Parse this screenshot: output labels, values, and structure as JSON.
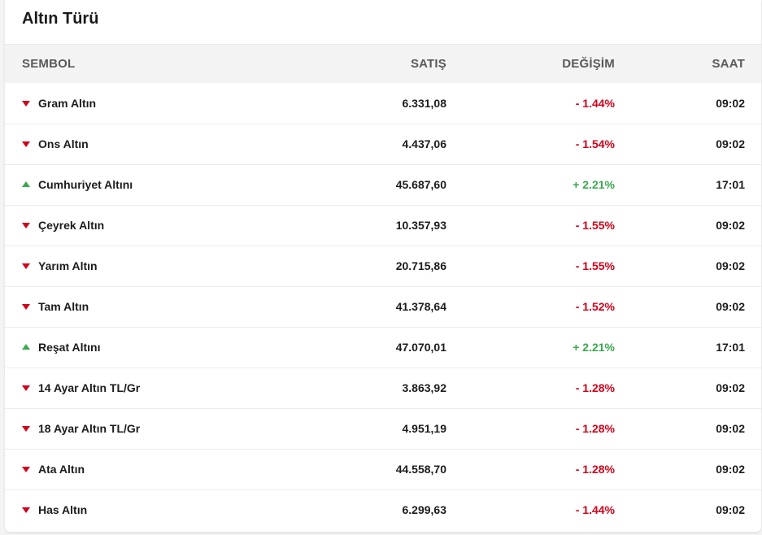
{
  "title": "Altın Türü",
  "columns": {
    "symbol": "SEMBOL",
    "sale": "SATIŞ",
    "change": "DEĞİŞİM",
    "time": "SAAT"
  },
  "colors": {
    "negative": "#d0021b",
    "positive": "#3aa84f"
  },
  "rows": [
    {
      "name": "Gram Altın",
      "sale": "6.331,08",
      "change": "- 1.44%",
      "time": "09:02",
      "direction": "down"
    },
    {
      "name": "Ons Altın",
      "sale": "4.437,06",
      "change": "- 1.54%",
      "time": "09:02",
      "direction": "down"
    },
    {
      "name": "Cumhuriyet Altını",
      "sale": "45.687,60",
      "change": "+ 2.21%",
      "time": "17:01",
      "direction": "up"
    },
    {
      "name": "Çeyrek Altın",
      "sale": "10.357,93",
      "change": "- 1.55%",
      "time": "09:02",
      "direction": "down"
    },
    {
      "name": "Yarım Altın",
      "sale": "20.715,86",
      "change": "- 1.55%",
      "time": "09:02",
      "direction": "down"
    },
    {
      "name": "Tam Altın",
      "sale": "41.378,64",
      "change": "- 1.52%",
      "time": "09:02",
      "direction": "down"
    },
    {
      "name": "Reşat Altını",
      "sale": "47.070,01",
      "change": "+ 2.21%",
      "time": "17:01",
      "direction": "up"
    },
    {
      "name": "14 Ayar Altın TL/Gr",
      "sale": "3.863,92",
      "change": "- 1.28%",
      "time": "09:02",
      "direction": "down"
    },
    {
      "name": "18 Ayar Altın TL/Gr",
      "sale": "4.951,19",
      "change": "- 1.28%",
      "time": "09:02",
      "direction": "down"
    },
    {
      "name": "Ata Altın",
      "sale": "44.558,70",
      "change": "- 1.28%",
      "time": "09:02",
      "direction": "down"
    },
    {
      "name": "Has Altın",
      "sale": "6.299,63",
      "change": "- 1.44%",
      "time": "09:02",
      "direction": "down"
    }
  ]
}
